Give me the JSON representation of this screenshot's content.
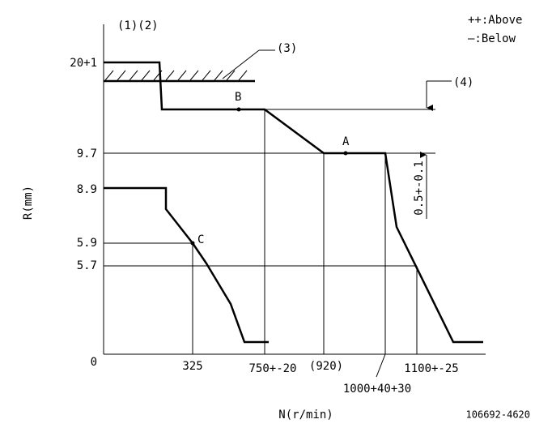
{
  "header": {
    "left": "(1)(2)",
    "legend": [
      "++:Above",
      "—:Below"
    ]
  },
  "callouts": {
    "c3": "(3)",
    "c4": "(4)",
    "tolerance": "0.5+-0.1"
  },
  "points": {
    "a": "A",
    "b": "B",
    "c": "C"
  },
  "y_labels": {
    "r20": "20+1",
    "r97": "9.7",
    "r89": "8.9",
    "r59": "5.9",
    "r57": "5.7",
    "zero": "0"
  },
  "x_labels": {
    "n325": "325",
    "n750": "750+-20",
    "n920": "(920)",
    "n1100": "1100+-25",
    "n1000": "1000+40+30"
  },
  "axes": {
    "y_title": "R(mm)",
    "x_title": "N(r/min)"
  },
  "footer": {
    "code": "106692-4620"
  }
}
